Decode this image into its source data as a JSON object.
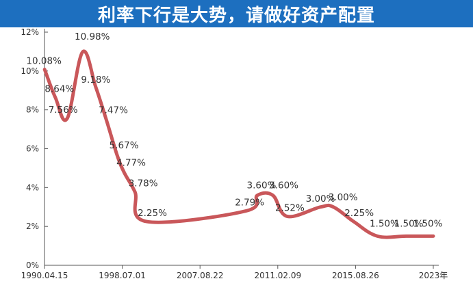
{
  "banner": {
    "title": "利率下行是大势，请做好资产配置"
  },
  "colors": {
    "banner": "#1d6fbf",
    "line": "#c9575a",
    "axis": "#555555",
    "text": "#333333"
  },
  "chart_data": {
    "type": "line",
    "title": "利率下行是大势，请做好资产配置",
    "xlabel": "",
    "ylabel": "",
    "ylim": [
      0,
      12
    ],
    "y_ticks": [
      "0%",
      "2%",
      "4%",
      "6%",
      "8%",
      "10%",
      "12%"
    ],
    "x_ticks": [
      "1990.04.15",
      "1998.07.01",
      "2007.08.22",
      "2011.02.09",
      "2015.08.26",
      "2023年"
    ],
    "grid": false,
    "legend": "none",
    "points": [
      {
        "x": 1990.3,
        "y": 10.08,
        "label": "10.08%"
      },
      {
        "x": 1991.2,
        "y": 8.64,
        "label": "8.64%"
      },
      {
        "x": 1992.2,
        "y": 7.56,
        "label": "7.56%"
      },
      {
        "x": 1993.5,
        "y": 10.98,
        "label": "10.98%"
      },
      {
        "x": 1994.6,
        "y": 9.18,
        "label": "9.18%"
      },
      {
        "x": 1995.5,
        "y": 7.47,
        "label": "7.47%"
      },
      {
        "x": 1996.4,
        "y": 5.67,
        "label": "5.67%"
      },
      {
        "x": 1997.0,
        "y": 4.77,
        "label": "4.77%"
      },
      {
        "x": 1997.9,
        "y": 3.78,
        "label": "3.78%"
      },
      {
        "x": 1998.9,
        "y": 2.25,
        "label": "2.25%"
      },
      {
        "x": 2007.2,
        "y": 2.79,
        "label": "2.79%"
      },
      {
        "x": 2008.2,
        "y": 3.6,
        "label": "3.60%"
      },
      {
        "x": 2009.5,
        "y": 3.6,
        "label": "3.60%"
      },
      {
        "x": 2010.7,
        "y": 2.52,
        "label": "2.52%"
      },
      {
        "x": 2013.5,
        "y": 3.0,
        "label": "3.00%"
      },
      {
        "x": 2014.6,
        "y": 3.0,
        "label": "3.00%"
      },
      {
        "x": 2016.3,
        "y": 2.25,
        "label": "2.25%"
      },
      {
        "x": 2018.3,
        "y": 1.5,
        "label": "1.50%"
      },
      {
        "x": 2020.7,
        "y": 1.5,
        "label": "1.50%"
      },
      {
        "x": 2023.0,
        "y": 1.5,
        "label": "1.50%"
      }
    ]
  }
}
